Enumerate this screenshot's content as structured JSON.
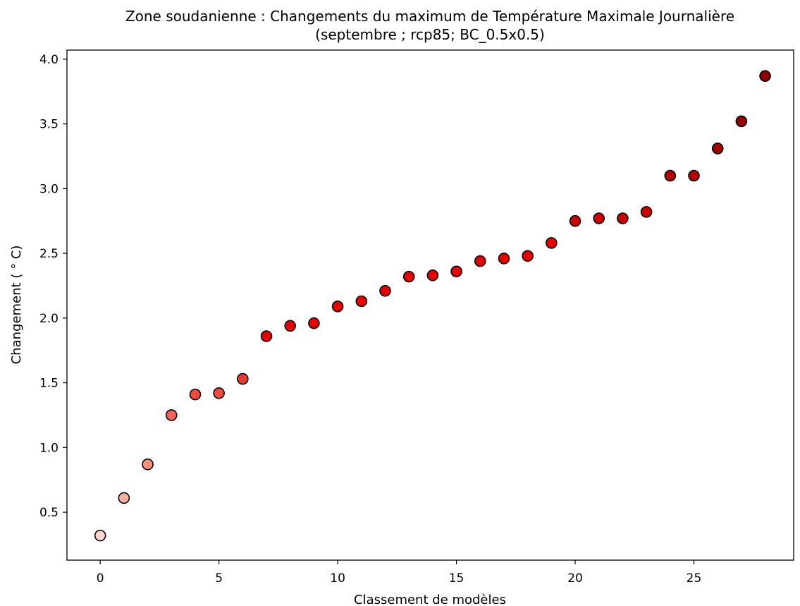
{
  "chart_data": {
    "type": "scatter",
    "title": "Zone soudanienne : Changements du maximum de Température Maximale Journalière",
    "subtitle": "(septembre ; rcp85; BC_0.5x0.5)",
    "xlabel": "Classement de modèles",
    "ylabel": "Changement ($^\\circ$C)",
    "ylabel_display": "Changement ( ° C)",
    "xlim": [
      -1.4,
      29.2
    ],
    "ylim": [
      0.13,
      4.07
    ],
    "xticks": [
      0,
      5,
      10,
      15,
      20,
      25
    ],
    "yticks": [
      0.5,
      1.0,
      1.5,
      2.0,
      2.5,
      3.0,
      3.5,
      4.0
    ],
    "ytick_labels": [
      "0.5",
      "1.0",
      "1.5",
      "2.0",
      "2.5",
      "3.0",
      "3.5",
      "4.0"
    ],
    "grid": false,
    "legend": "none",
    "marker_edge_color": "#000000",
    "colormap": "Reds",
    "x": [
      0,
      1,
      2,
      3,
      4,
      5,
      6,
      7,
      8,
      9,
      10,
      11,
      12,
      13,
      14,
      15,
      16,
      17,
      18,
      19,
      20,
      21,
      22,
      23,
      24,
      25,
      26,
      27,
      28
    ],
    "y": [
      0.32,
      0.61,
      0.87,
      1.25,
      1.41,
      1.42,
      1.53,
      1.86,
      1.94,
      1.96,
      2.09,
      2.13,
      2.21,
      2.32,
      2.33,
      2.36,
      2.44,
      2.46,
      2.48,
      2.58,
      2.75,
      2.77,
      2.77,
      2.82,
      3.1,
      3.1,
      3.31,
      3.52,
      3.87
    ],
    "colors": [
      "#fcd6cc",
      "#fbb1a1",
      "#f98f7c",
      "#f26456",
      "#ee4b3d",
      "#ee4b3d",
      "#e93a30",
      "#e60000",
      "#e60000",
      "#e60000",
      "#e60000",
      "#e60000",
      "#e60000",
      "#e60000",
      "#e60000",
      "#e60000",
      "#e60000",
      "#e60000",
      "#e60000",
      "#e60000",
      "#cc0000",
      "#cc0000",
      "#cc0000",
      "#cc0000",
      "#b30000",
      "#b30000",
      "#a10000",
      "#950000",
      "#8a0000"
    ]
  }
}
